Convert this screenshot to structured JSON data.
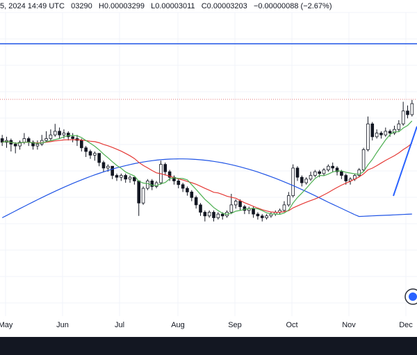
{
  "header": {
    "time_fragment": "5, 2024 14:49 UTC",
    "open_fragment": "03290",
    "high": "H0.00003299",
    "low": "L0.00003011",
    "close": "C0.00003203",
    "change": "−0.00000088 (−2.67%)"
  },
  "colors": {
    "up": "#131722",
    "down": "#131722",
    "ma_fast": "#4caf50",
    "ma_mid": "#e53935",
    "ma_slow": "#1e53e5",
    "trendline": "#2962ff",
    "price_line": "#e57373"
  },
  "chart_data": {
    "type": "candlestick",
    "x_tick_labels": [
      "May",
      "Jun",
      "Jul",
      "Aug",
      "Sep",
      "Oct",
      "Nov",
      "Dec"
    ],
    "candles_ohlc_relative": "values below are normalized price levels (0 = chart bottom, 100 = chart top)",
    "candles": [
      [
        70,
        68,
        72,
        66
      ],
      [
        68,
        69,
        71,
        65
      ],
      [
        69,
        67,
        70,
        63
      ],
      [
        67,
        66,
        68,
        62
      ],
      [
        66,
        68,
        69,
        64
      ],
      [
        68,
        70,
        73,
        67
      ],
      [
        70,
        68,
        71,
        66
      ],
      [
        68,
        66,
        69,
        64
      ],
      [
        66,
        67,
        69,
        64
      ],
      [
        67,
        69,
        72,
        66
      ],
      [
        69,
        70,
        74,
        68
      ],
      [
        70,
        72,
        75,
        69
      ],
      [
        72,
        74,
        78,
        71
      ],
      [
        74,
        72,
        76,
        70
      ],
      [
        72,
        73,
        75,
        70
      ],
      [
        73,
        71,
        74,
        69
      ],
      [
        71,
        70,
        73,
        68
      ],
      [
        70,
        69,
        72,
        66
      ],
      [
        69,
        65,
        70,
        63
      ],
      [
        65,
        63,
        66,
        60
      ],
      [
        63,
        61,
        64,
        59
      ],
      [
        61,
        62,
        63,
        58
      ],
      [
        62,
        57,
        62,
        55
      ],
      [
        57,
        54,
        58,
        52
      ],
      [
        54,
        55,
        56,
        52
      ],
      [
        55,
        50,
        55,
        48
      ],
      [
        50,
        49,
        51,
        47
      ],
      [
        49,
        50,
        51,
        47
      ],
      [
        50,
        48,
        51,
        46
      ],
      [
        48,
        49,
        50,
        46
      ],
      [
        49,
        47,
        49,
        45
      ],
      [
        47,
        35,
        47,
        28
      ],
      [
        35,
        43,
        44,
        34
      ],
      [
        43,
        47,
        48,
        42
      ],
      [
        47,
        44,
        48,
        42
      ],
      [
        44,
        46,
        47,
        43
      ],
      [
        46,
        56,
        58,
        45
      ],
      [
        56,
        52,
        57,
        50
      ],
      [
        52,
        49,
        53,
        47
      ],
      [
        49,
        47,
        50,
        45
      ],
      [
        47,
        45,
        48,
        43
      ],
      [
        45,
        43,
        46,
        41
      ],
      [
        43,
        41,
        44,
        39
      ],
      [
        41,
        38,
        42,
        36
      ],
      [
        38,
        34,
        39,
        32
      ],
      [
        34,
        30,
        35,
        28
      ],
      [
        30,
        28,
        31,
        25
      ],
      [
        28,
        30,
        31,
        27
      ],
      [
        30,
        27,
        31,
        25
      ],
      [
        27,
        29,
        30,
        26
      ],
      [
        29,
        28,
        30,
        26
      ],
      [
        28,
        30,
        31,
        27
      ],
      [
        30,
        34,
        40,
        29
      ],
      [
        34,
        36,
        37,
        32
      ],
      [
        36,
        33,
        37,
        31
      ],
      [
        33,
        31,
        34,
        29
      ],
      [
        31,
        32,
        33,
        29
      ],
      [
        32,
        29,
        33,
        27
      ],
      [
        29,
        28,
        30,
        26
      ],
      [
        28,
        27,
        29,
        25
      ],
      [
        27,
        28,
        29,
        26
      ],
      [
        28,
        29,
        30,
        27
      ],
      [
        29,
        30,
        31,
        28
      ],
      [
        30,
        31,
        32,
        29
      ],
      [
        31,
        34,
        36,
        30
      ],
      [
        34,
        39,
        41,
        33
      ],
      [
        39,
        54,
        56,
        38
      ],
      [
        54,
        49,
        55,
        47
      ],
      [
        49,
        46,
        50,
        44
      ],
      [
        46,
        48,
        49,
        45
      ],
      [
        48,
        50,
        52,
        47
      ],
      [
        50,
        52,
        53,
        49
      ],
      [
        52,
        51,
        53,
        49
      ],
      [
        51,
        53,
        54,
        50
      ],
      [
        53,
        55,
        56,
        52
      ],
      [
        55,
        54,
        57,
        52
      ],
      [
        54,
        52,
        55,
        50
      ],
      [
        52,
        50,
        53,
        48
      ],
      [
        50,
        47,
        51,
        45
      ],
      [
        47,
        48,
        49,
        45
      ],
      [
        48,
        50,
        51,
        47
      ],
      [
        50,
        53,
        54,
        49
      ],
      [
        53,
        64,
        65,
        52
      ],
      [
        64,
        78,
        82,
        63
      ],
      [
        78,
        71,
        79,
        69
      ],
      [
        71,
        73,
        75,
        70
      ],
      [
        73,
        72,
        74,
        70
      ],
      [
        72,
        74,
        76,
        71
      ],
      [
        74,
        73,
        75,
        71
      ],
      [
        73,
        75,
        77,
        72
      ],
      [
        75,
        78,
        80,
        74
      ],
      [
        78,
        85,
        90,
        77
      ],
      [
        85,
        83,
        88,
        81
      ],
      [
        83,
        89,
        91,
        82
      ]
    ],
    "series": [
      {
        "name": "",
        "color_key": "ma_fast"
      },
      {
        "name": "",
        "color_key": "ma_mid"
      },
      {
        "name": "",
        "color_key": "ma_slow"
      }
    ]
  }
}
